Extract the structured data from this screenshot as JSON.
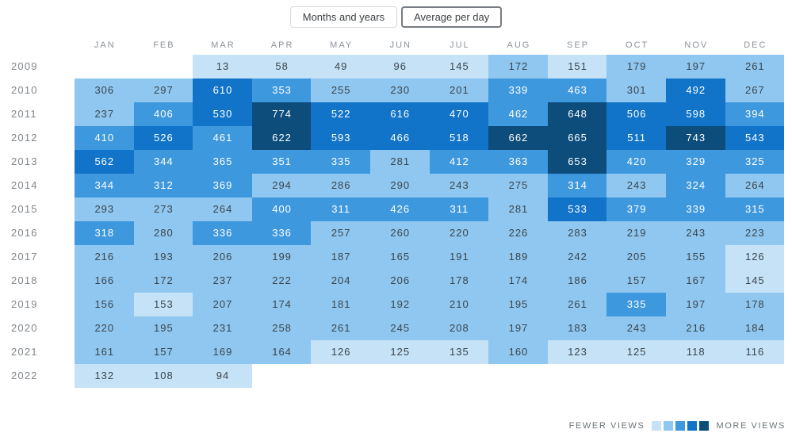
{
  "toolbar": {
    "toggle_months_years": "Months and years",
    "toggle_average_per_day": "Average per day",
    "selected": "Average per day"
  },
  "legend": {
    "fewer_label": "FEWER VIEWS",
    "more_label": "MORE VIEWS"
  },
  "chart_data": {
    "type": "heatmap",
    "columns": [
      "JAN",
      "FEB",
      "MAR",
      "APR",
      "MAY",
      "JUN",
      "JUL",
      "AUG",
      "SEP",
      "OCT",
      "NOV",
      "DEC"
    ],
    "rows": [
      "2009",
      "2010",
      "2011",
      "2012",
      "2013",
      "2014",
      "2015",
      "2016",
      "2017",
      "2018",
      "2019",
      "2020",
      "2021",
      "2022"
    ],
    "values": [
      [
        null,
        null,
        13,
        58,
        49,
        96,
        145,
        172,
        151,
        179,
        197,
        261
      ],
      [
        306,
        297,
        610,
        353,
        255,
        230,
        201,
        339,
        463,
        301,
        492,
        267
      ],
      [
        237,
        406,
        530,
        774,
        522,
        616,
        470,
        462,
        648,
        506,
        598,
        394
      ],
      [
        410,
        526,
        461,
        622,
        593,
        466,
        518,
        662,
        665,
        511,
        743,
        543
      ],
      [
        562,
        344,
        365,
        351,
        335,
        281,
        412,
        363,
        653,
        420,
        329,
        325
      ],
      [
        344,
        312,
        369,
        294,
        286,
        290,
        243,
        275,
        314,
        243,
        324,
        264
      ],
      [
        293,
        273,
        264,
        400,
        311,
        426,
        311,
        281,
        533,
        379,
        339,
        315
      ],
      [
        318,
        280,
        336,
        336,
        257,
        260,
        220,
        226,
        283,
        219,
        243,
        223
      ],
      [
        216,
        193,
        206,
        199,
        187,
        165,
        191,
        189,
        242,
        205,
        155,
        126
      ],
      [
        166,
        172,
        237,
        222,
        204,
        206,
        178,
        174,
        186,
        157,
        167,
        145
      ],
      [
        156,
        153,
        207,
        174,
        181,
        192,
        210,
        195,
        261,
        335,
        197,
        178
      ],
      [
        220,
        195,
        231,
        258,
        261,
        245,
        208,
        197,
        183,
        243,
        216,
        184
      ],
      [
        161,
        157,
        169,
        164,
        126,
        125,
        135,
        160,
        123,
        125,
        118,
        116
      ],
      [
        132,
        108,
        94,
        null,
        null,
        null,
        null,
        null,
        null,
        null,
        null,
        null
      ]
    ],
    "value_max": 774,
    "buckets": 5,
    "palette": [
      "#c6e2f6",
      "#8fc7f0",
      "#3e98de",
      "#1174c9",
      "#0c4d7c"
    ],
    "white_text_from_bucket": 2,
    "dark_text_color": "#3b454d",
    "light_text_color": "#ffffff",
    "legend_position": "bottom-right"
  }
}
